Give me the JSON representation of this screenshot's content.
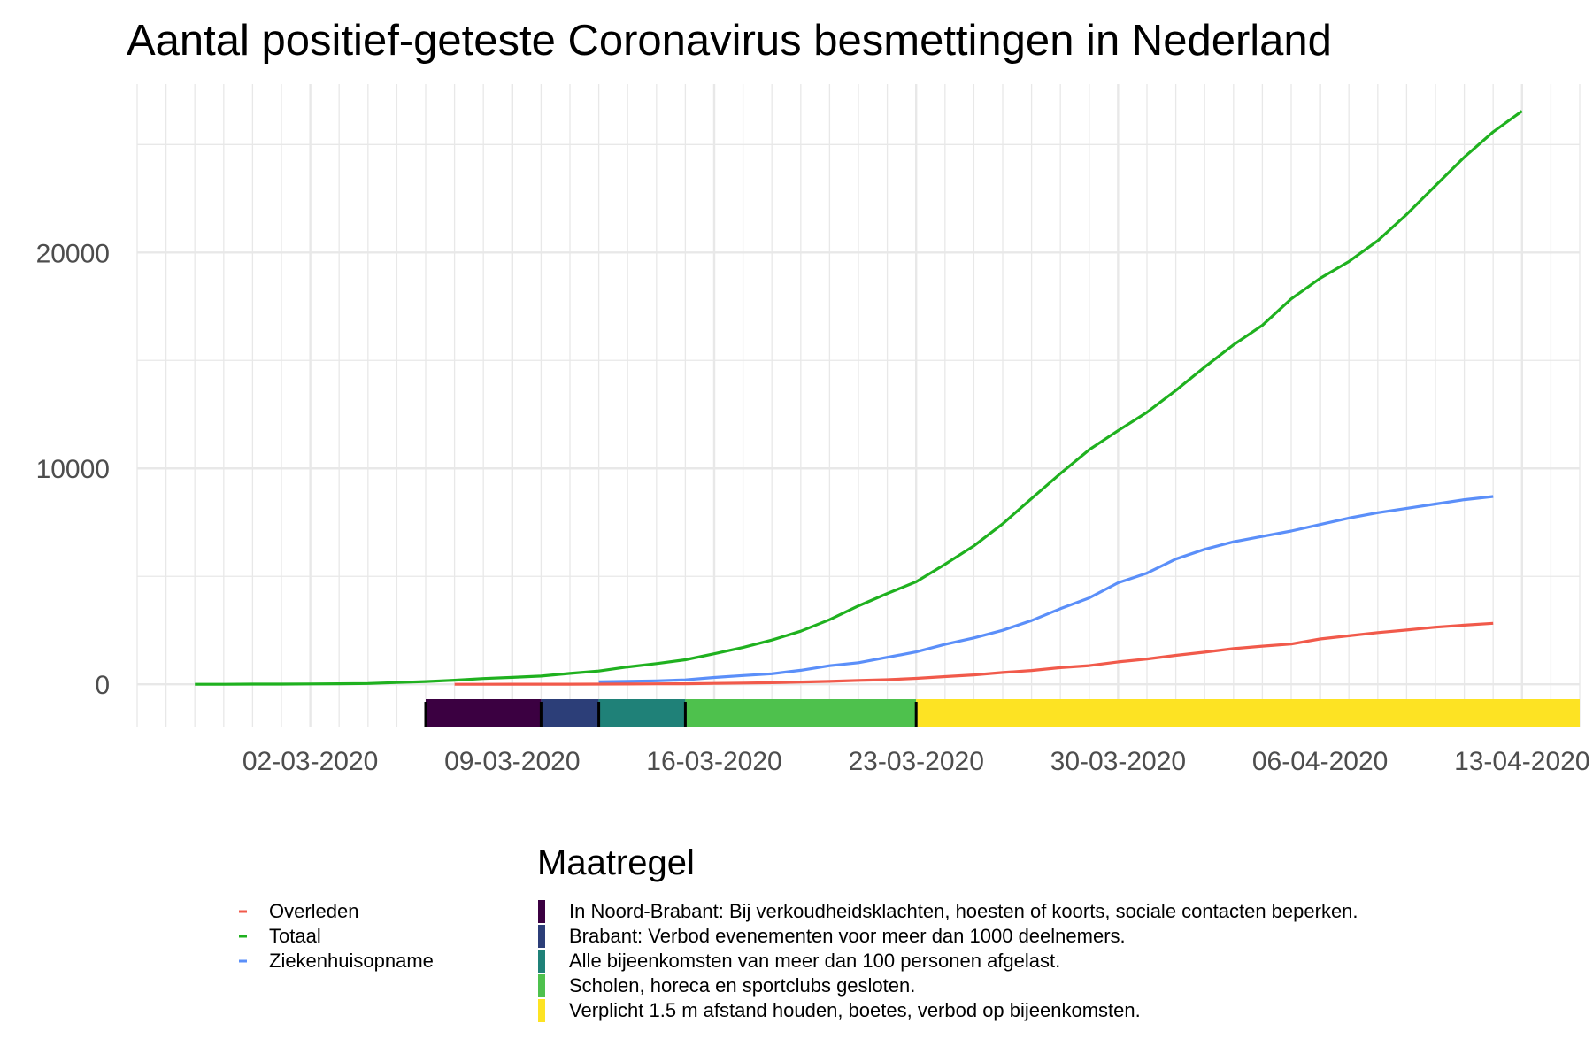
{
  "chart_data": {
    "type": "line",
    "title": "Aantal positief-geteste Coronavirus besmettingen in Nederland",
    "xlabel": "",
    "ylabel": "",
    "x_start": "2020-02-27",
    "x_end": "2020-04-13",
    "xlim": [
      "2020-02-25",
      "2020-04-15"
    ],
    "ylim": [
      -2000,
      27800
    ],
    "y_ticks": [
      "0",
      "10000",
      "20000"
    ],
    "y_tick_values": [
      0,
      10000,
      20000
    ],
    "x_tick_labels": [
      "02-03-2020",
      "09-03-2020",
      "16-03-2020",
      "23-03-2020",
      "30-03-2020",
      "06-04-2020",
      "13-04-2020"
    ],
    "x_tick_dates": [
      "2020-03-02",
      "2020-03-09",
      "2020-03-16",
      "2020-03-23",
      "2020-03-30",
      "2020-04-06",
      "2020-04-13"
    ],
    "grid": true,
    "series": [
      {
        "name": "Totaal",
        "color": "#1fb11f",
        "start": "2020-02-27",
        "values": [
          1,
          2,
          7,
          10,
          18,
          24,
          38,
          82,
          128,
          188,
          265,
          321,
          382,
          503,
          614,
          804,
          959,
          1135,
          1413,
          1705,
          2051,
          2460,
          2994,
          3631,
          4204,
          4749,
          5560,
          6412,
          7431,
          8603,
          9762,
          10866,
          11750,
          12595,
          13614,
          14697,
          15723,
          16627,
          17851,
          18803,
          19580,
          20549,
          21762,
          23097,
          24413,
          25587,
          26551
        ]
      },
      {
        "name": "Ziekenhuisopname",
        "color": "#5b8ff9",
        "start": "2020-03-12",
        "values": [
          115,
          136,
          162,
          205,
          314,
          408,
          487,
          650,
          863,
          1000,
          1250,
          1500,
          1850,
          2150,
          2500,
          2950,
          3500,
          4000,
          4700,
          5150,
          5800,
          6250,
          6600,
          6850,
          7100,
          7400,
          7700,
          7950,
          8150,
          8350,
          8550,
          8700
        ]
      },
      {
        "name": "Overleden",
        "color": "#f15a4b",
        "start": "2020-03-07",
        "values": [
          1,
          1,
          3,
          4,
          5,
          10,
          12,
          20,
          24,
          43,
          58,
          76,
          106,
          136,
          179,
          213,
          276,
          356,
          434,
          546,
          639,
          771,
          864,
          1039,
          1173,
          1339,
          1487,
          1651,
          1766,
          1867,
          2101,
          2248,
          2396,
          2511,
          2643,
          2737,
          2823
        ]
      }
    ],
    "measures": [
      {
        "label": "In Noord-Brabant: Bij verkoudheidsklachten, hoesten of koorts, sociale contacten beperken.",
        "color": "#3b0041",
        "start": "2020-03-06",
        "end": "2020-03-10"
      },
      {
        "label": "Brabant: Verbod evenementen voor meer dan 1000 deelnemers.",
        "color": "#2c3e78",
        "start": "2020-03-10",
        "end": "2020-03-12"
      },
      {
        "label": "Alle bijeenkomsten van meer dan 100 personen afgelast.",
        "color": "#1f8178",
        "start": "2020-03-12",
        "end": "2020-03-15"
      },
      {
        "label": "Scholen, horeca en sportclubs gesloten.",
        "color": "#4ec14d",
        "start": "2020-03-15",
        "end": "2020-03-23"
      },
      {
        "label": "Verplicht 1.5 m afstand houden, boetes, verbod op bijeenkomsten.",
        "color": "#fde323",
        "start": "2020-03-23",
        "end": "2020-04-15"
      }
    ],
    "legend_title": "Maatregel",
    "legend_lines": [
      "Overleden",
      "Totaal",
      "Ziekenhuisopname"
    ]
  }
}
